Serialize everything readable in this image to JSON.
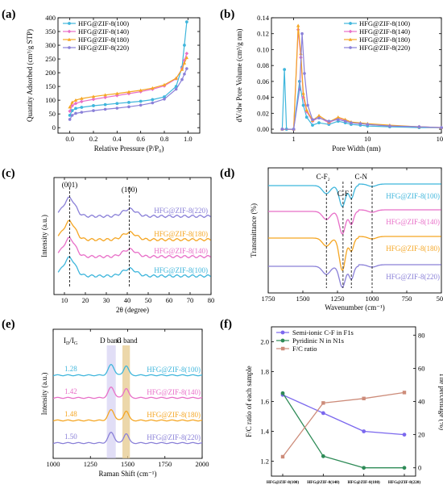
{
  "chart_data": [
    {
      "panel": "(a)",
      "type": "line",
      "xlabel": "Relative Pressure (P/P₀)",
      "ylabel": "Quantity Adsorbed (cm³/g STP)",
      "xlim": [
        -0.1,
        1.1
      ],
      "ylim": [
        -20,
        400
      ],
      "xticks": [
        0.0,
        0.2,
        0.4,
        0.6,
        0.8,
        1.0
      ],
      "xtick_labels": [
        "0.0",
        "0.2",
        "0.4",
        "0.6",
        "0.8",
        "1.0"
      ],
      "yticks": [
        0,
        50,
        100,
        150,
        200,
        250,
        300,
        350,
        400
      ],
      "ytick_labels": [
        "0",
        "50",
        "100",
        "150",
        "200",
        "250",
        "300",
        "350",
        "400"
      ],
      "legend_position": "top-left",
      "series": [
        {
          "name": "HFG@ZIF-8(100)",
          "color": "#3fb6dc",
          "x": [
            0.0,
            0.02,
            0.05,
            0.1,
            0.2,
            0.3,
            0.4,
            0.5,
            0.6,
            0.7,
            0.8,
            0.9,
            0.95,
            0.97,
            0.99
          ],
          "y": [
            45,
            62,
            70,
            74,
            80,
            84,
            88,
            92,
            96,
            102,
            112,
            150,
            220,
            300,
            385
          ]
        },
        {
          "name": "HFG@ZIF-8(140)",
          "color": "#e86fc8",
          "x": [
            0.0,
            0.02,
            0.05,
            0.1,
            0.2,
            0.3,
            0.4,
            0.5,
            0.6,
            0.7,
            0.8,
            0.9,
            0.95,
            0.97,
            0.99
          ],
          "y": [
            60,
            80,
            88,
            95,
            103,
            110,
            117,
            124,
            131,
            140,
            152,
            178,
            215,
            245,
            270
          ]
        },
        {
          "name": "HFG@ZIF-8(180)",
          "color": "#f5a623",
          "x": [
            0.0,
            0.02,
            0.05,
            0.1,
            0.2,
            0.3,
            0.4,
            0.5,
            0.6,
            0.7,
            0.8,
            0.9,
            0.95,
            0.97,
            0.99
          ],
          "y": [
            75,
            92,
            100,
            106,
            113,
            119,
            124,
            130,
            136,
            144,
            156,
            180,
            212,
            235,
            255
          ]
        },
        {
          "name": "HFG@ZIF-8(220)",
          "color": "#8a80d8",
          "x": [
            0.0,
            0.02,
            0.05,
            0.1,
            0.2,
            0.3,
            0.4,
            0.5,
            0.6,
            0.7,
            0.8,
            0.9,
            0.95,
            0.97,
            0.99
          ],
          "y": [
            30,
            45,
            52,
            56,
            62,
            67,
            71,
            76,
            82,
            90,
            104,
            140,
            175,
            195,
            215
          ]
        }
      ]
    },
    {
      "panel": "(b)",
      "type": "line",
      "xscale": "log",
      "xlabel": "Pore Width (nm)",
      "ylabel": "dV/dw Pore Volume (cm³/g nm)",
      "xlim": [
        0.5,
        100
      ],
      "ylim": [
        -0.005,
        0.14
      ],
      "xticks": [
        1,
        10,
        100
      ],
      "xtick_labels": [
        "1",
        "10",
        "100"
      ],
      "yticks": [
        0.0,
        0.02,
        0.04,
        0.06,
        0.08,
        0.1,
        0.12,
        0.14
      ],
      "ytick_labels": [
        "0.00",
        "0.02",
        "0.04",
        "0.06",
        "0.08",
        "0.10",
        "0.12",
        "0.14"
      ],
      "legend_position": "top-right",
      "series": [
        {
          "name": "HFG@ZIF-8(100)",
          "color": "#3fb6dc",
          "x": [
            0.7,
            0.75,
            0.8,
            1.0,
            1.2,
            1.35,
            1.5,
            1.8,
            2.2,
            3,
            4,
            5,
            6,
            8,
            10,
            20,
            50,
            100
          ],
          "y": [
            0.0,
            0.075,
            0.0,
            0.0,
            0.06,
            0.03,
            0.015,
            0.005,
            0.008,
            0.006,
            0.01,
            0.008,
            0.006,
            0.005,
            0.004,
            0.003,
            0.002,
            0.002
          ]
        },
        {
          "name": "HFG@ZIF-8(140)",
          "color": "#e86fc8",
          "x": [
            0.7,
            1.0,
            1.15,
            1.25,
            1.35,
            1.5,
            1.8,
            2.2,
            3,
            4,
            5,
            6,
            8,
            10,
            20,
            50,
            100
          ],
          "y": [
            0.0,
            0.0,
            0.125,
            0.09,
            0.04,
            0.022,
            0.01,
            0.015,
            0.008,
            0.014,
            0.011,
            0.008,
            0.007,
            0.006,
            0.004,
            0.003,
            0.002
          ]
        },
        {
          "name": "HFG@ZIF-8(180)",
          "color": "#f5a623",
          "x": [
            0.7,
            1.0,
            1.15,
            1.25,
            1.35,
            1.5,
            1.8,
            2.2,
            3,
            4,
            5,
            6,
            8,
            10,
            20,
            50,
            100
          ],
          "y": [
            0.0,
            0.0,
            0.13,
            0.095,
            0.045,
            0.024,
            0.011,
            0.017,
            0.009,
            0.015,
            0.012,
            0.009,
            0.008,
            0.007,
            0.005,
            0.003,
            0.002
          ]
        },
        {
          "name": "HFG@ZIF-8(220)",
          "color": "#8a80d8",
          "x": [
            0.7,
            1.0,
            1.2,
            1.3,
            1.4,
            1.55,
            1.8,
            2.2,
            3,
            4,
            5,
            6,
            8,
            10,
            20,
            50,
            100
          ],
          "y": [
            0.0,
            0.0,
            0.05,
            0.12,
            0.07,
            0.03,
            0.012,
            0.014,
            0.01,
            0.012,
            0.01,
            0.008,
            0.007,
            0.006,
            0.004,
            0.003,
            0.002
          ]
        }
      ]
    },
    {
      "panel": "(c)",
      "type": "line",
      "xlabel": "2θ (degree)",
      "ylabel": "Intensity (a.u.)",
      "xlim": [
        5,
        80
      ],
      "xticks": [
        10,
        20,
        30,
        40,
        50,
        60,
        70,
        80
      ],
      "xtick_labels": [
        "10",
        "20",
        "30",
        "40",
        "50",
        "60",
        "70",
        "80"
      ],
      "annotations": [
        "(001)",
        "(100)"
      ],
      "peaks": [
        12.5,
        41
      ],
      "series": [
        {
          "name": "HFG@ZIF-8(220)",
          "color": "#8a80d8"
        },
        {
          "name": "HFG@ZIF-8(180)",
          "color": "#f5a623"
        },
        {
          "name": "HFG@ZIF-8(140)",
          "color": "#e86fc8"
        },
        {
          "name": "HFG@ZIF-8(100)",
          "color": "#3fb6dc"
        }
      ]
    },
    {
      "panel": "(d)",
      "type": "line",
      "xlabel": "Wavenumber (cm⁻¹)",
      "ylabel": "Transmittance (%)",
      "xlim": [
        1750,
        500
      ],
      "xticks": [
        1750,
        1500,
        1250,
        1000,
        750,
        500
      ],
      "xtick_labels": [
        "1750",
        "1500",
        "1250",
        "1000",
        "750",
        "500"
      ],
      "annotations": [
        "C-F₂",
        "C-F",
        "C-N"
      ],
      "peaks": [
        1330,
        1210,
        1150,
        1000
      ],
      "series": [
        {
          "name": "HFG@ZIF-8(100)",
          "color": "#3fb6dc"
        },
        {
          "name": "HFG@ZIF-8(140)",
          "color": "#e86fc8"
        },
        {
          "name": "HFG@ZIF-8(180)",
          "color": "#f5a623"
        },
        {
          "name": "HFG@ZIF-8(220)",
          "color": "#8a80d8"
        }
      ]
    },
    {
      "panel": "(e)",
      "type": "line",
      "xlabel": "Raman Shift (cm⁻¹)",
      "ylabel": "Intensity (a.u.)",
      "xlim": [
        1000,
        2000
      ],
      "xticks": [
        1000,
        1250,
        1500,
        1750,
        2000
      ],
      "xtick_labels": [
        "1000",
        "1250",
        "1500",
        "1750",
        "2000"
      ],
      "annotations": [
        "I_D/I_G",
        "D band",
        "G band"
      ],
      "peaks": [
        1390,
        1490
      ],
      "series": [
        {
          "name": "HFG@ZIF-8(100)",
          "color": "#3fb6dc",
          "id_ig": "1.28"
        },
        {
          "name": "HFG@ZIF-8(140)",
          "color": "#e86fc8",
          "id_ig": "1.42"
        },
        {
          "name": "HFG@ZIF-8(180)",
          "color": "#f5a623",
          "id_ig": "1.48"
        },
        {
          "name": "HFG@ZIF-8(220)",
          "color": "#8a80d8",
          "id_ig": "1.50"
        }
      ]
    },
    {
      "panel": "(f)",
      "type": "line",
      "categories": [
        "HFG@ZIF-8(100)",
        "HFG@ZIF-8(140)",
        "HFG@ZIF-8(180)",
        "HFG@ZIF-8(220)"
      ],
      "ylabel": "F/C ratio of each sample",
      "y2label": "The percentage (%)",
      "ylim": [
        1.1,
        2.1
      ],
      "yticks": [
        1.2,
        1.4,
        1.6,
        1.8,
        2.0
      ],
      "ytick_labels": [
        "1.2",
        "1.4",
        "1.6",
        "1.8",
        "2.0"
      ],
      "y2lim": [
        -5,
        85
      ],
      "y2ticks": [
        0,
        20,
        40,
        60,
        80
      ],
      "y2tick_labels": [
        "0",
        "20",
        "40",
        "60",
        "80"
      ],
      "legend_position": "top-right",
      "series": [
        {
          "name": "Semi-ionic C-F in F1s",
          "color": "#7b68ee",
          "axis": "y2",
          "values": [
            44,
            33,
            22,
            20
          ]
        },
        {
          "name": "Pyridinic N in N1s",
          "color": "#2e8b57",
          "axis": "y2",
          "values": [
            45,
            7,
            0,
            0
          ]
        },
        {
          "name": "F/C ratio",
          "color": "#cd8c7a",
          "axis": "y1",
          "values": [
            1.23,
            1.59,
            1.62,
            1.66
          ]
        }
      ]
    }
  ]
}
